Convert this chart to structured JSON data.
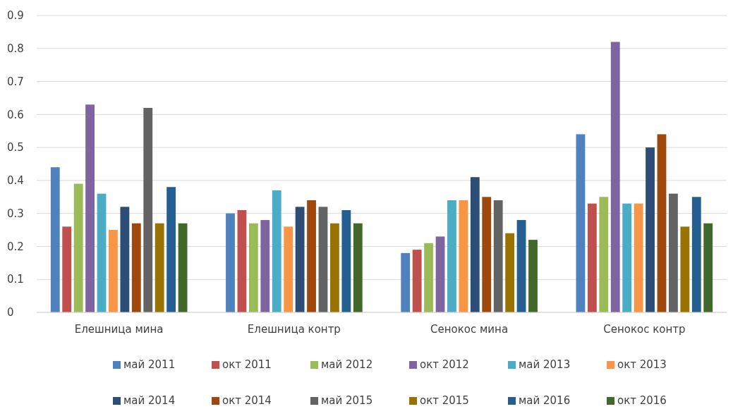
{
  "chart_data": {
    "type": "bar",
    "categories": [
      "Елешница мина",
      "Елешница контр",
      "Сенокос мина",
      "Сенокос контр"
    ],
    "ylim": [
      0,
      0.9
    ],
    "yticks": [
      0,
      0.1,
      0.2,
      0.3,
      0.4,
      0.5,
      0.6,
      0.7,
      0.8,
      0.9
    ],
    "grid": "y",
    "legend": "bottom",
    "series": [
      {
        "name": "май 2011",
        "color": "#4f81bd",
        "values": [
          0.44,
          0.3,
          0.18,
          0.54
        ]
      },
      {
        "name": "окт 2011",
        "color": "#c0504d",
        "values": [
          0.26,
          0.31,
          0.19,
          0.33
        ]
      },
      {
        "name": "май 2012",
        "color": "#9bbb59",
        "values": [
          0.39,
          0.27,
          0.21,
          0.35
        ]
      },
      {
        "name": "окт 2012",
        "color": "#8064a2",
        "values": [
          0.63,
          0.28,
          0.23,
          0.82
        ]
      },
      {
        "name": "май 2013",
        "color": "#4bacc6",
        "values": [
          0.36,
          0.37,
          0.34,
          0.33
        ]
      },
      {
        "name": "окт 2013",
        "color": "#f79646",
        "values": [
          0.25,
          0.26,
          0.34,
          0.33
        ]
      },
      {
        "name": "май 2014",
        "color": "#2c4d75",
        "values": [
          0.32,
          0.32,
          0.41,
          0.5
        ]
      },
      {
        "name": "окт 2014",
        "color": "#9e480e",
        "values": [
          0.27,
          0.34,
          0.35,
          0.54
        ]
      },
      {
        "name": "май 2015",
        "color": "#636363",
        "values": [
          0.62,
          0.32,
          0.34,
          0.36
        ]
      },
      {
        "name": "окт 2015",
        "color": "#997300",
        "values": [
          0.27,
          0.27,
          0.24,
          0.26
        ]
      },
      {
        "name": "май 2016",
        "color": "#255e91",
        "values": [
          0.38,
          0.31,
          0.28,
          0.35
        ]
      },
      {
        "name": "окт 2016",
        "color": "#43682b",
        "values": [
          0.27,
          0.27,
          0.22,
          0.27
        ]
      }
    ]
  }
}
